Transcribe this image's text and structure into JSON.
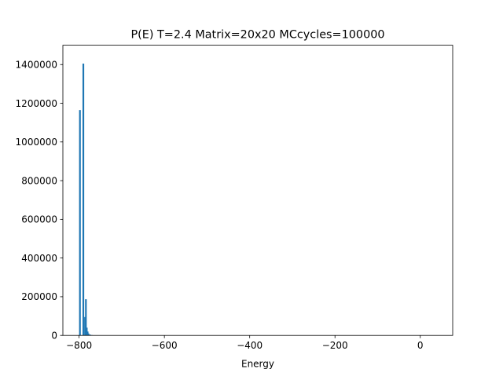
{
  "chart_data": {
    "type": "bar",
    "title": "P(E) T=2.4 Matrix=20x20 MCcycles=100000",
    "xlabel": "Energy",
    "ylabel": "",
    "xlim": [
      -838,
      76
    ],
    "ylim": [
      0,
      1500000
    ],
    "xticks": [
      -800,
      -600,
      -400,
      -200,
      0
    ],
    "xtick_labels": [
      "−800",
      "−600",
      "−400",
      "−200",
      "0"
    ],
    "yticks": [
      0,
      200000,
      400000,
      600000,
      800000,
      1000000,
      1200000,
      1400000
    ],
    "ytick_labels": [
      "0",
      "200000",
      "400000",
      "600000",
      "800000",
      "1000000",
      "1200000",
      "1400000"
    ],
    "bar_color": "#1f77b4",
    "bin_width": 4,
    "grid": false,
    "bins": [
      {
        "x": -800,
        "value": 1165000
      },
      {
        "x": -792,
        "value": 1405000
      },
      {
        "x": -788,
        "value": 95000
      },
      {
        "x": -786,
        "value": 187000
      },
      {
        "x": -784,
        "value": 40000
      },
      {
        "x": -782,
        "value": 20000
      },
      {
        "x": -780,
        "value": 10000
      },
      {
        "x": -776,
        "value": 4000
      },
      {
        "x": -772,
        "value": 1500
      },
      {
        "x": -768,
        "value": 500
      }
    ]
  }
}
